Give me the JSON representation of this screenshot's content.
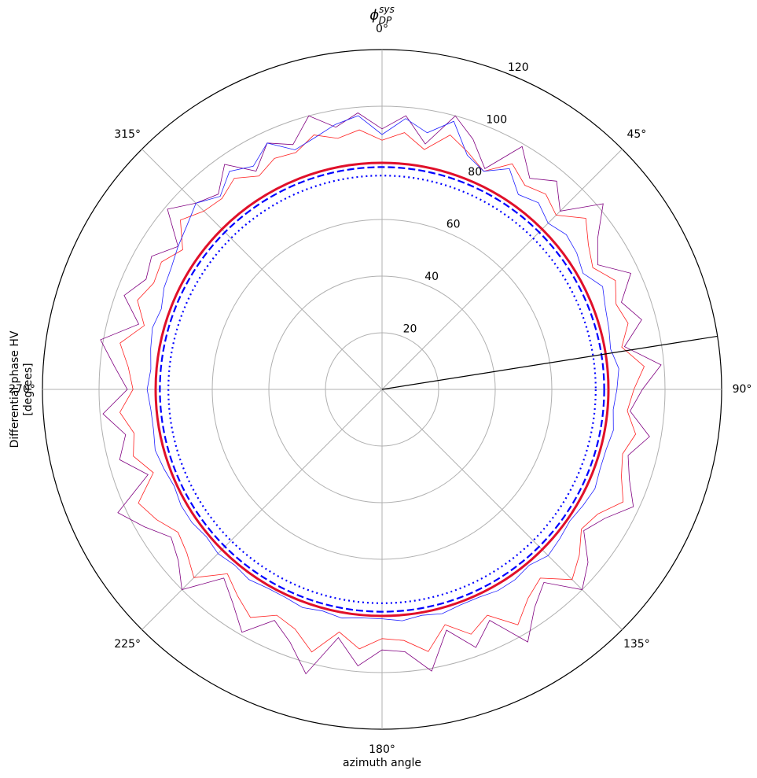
{
  "chart_data": {
    "type": "polar",
    "title": {
      "base": "ϕ",
      "sub": "DP",
      "sup": "sys"
    },
    "xlabel": "azimuth angle",
    "ylabel": [
      "Differential phase HV",
      "[degrees]"
    ],
    "theta_zero": "top",
    "theta_direction": "clockwise",
    "rlim": [
      0,
      120
    ],
    "rticks": [
      20,
      40,
      60,
      80,
      100,
      120
    ],
    "thetaticks": [
      {
        "value": 0,
        "label": "0°"
      },
      {
        "value": 45,
        "label": "45°"
      },
      {
        "value": 90,
        "label": "90°"
      },
      {
        "value": 135,
        "label": "135°"
      },
      {
        "value": 180,
        "label": "180°"
      },
      {
        "value": 225,
        "label": "225°"
      },
      {
        "value": 270,
        "label": "270°"
      },
      {
        "value": 315,
        "label": "315°"
      }
    ],
    "grid": true,
    "x": [
      0,
      5,
      10,
      15,
      20,
      25,
      30,
      35,
      40,
      45,
      50,
      55,
      60,
      65,
      70,
      75,
      80,
      85,
      90,
      95,
      100,
      105,
      110,
      115,
      120,
      125,
      130,
      135,
      140,
      145,
      150,
      155,
      160,
      165,
      170,
      175,
      180,
      185,
      190,
      195,
      200,
      205,
      210,
      215,
      220,
      225,
      230,
      235,
      240,
      245,
      250,
      255,
      260,
      265,
      270,
      275,
      280,
      285,
      290,
      295,
      300,
      305,
      310,
      315,
      320,
      325,
      330,
      335,
      340,
      345,
      350,
      355
    ],
    "series": [
      {
        "color": "#800080",
        "values": [
          92,
          97,
          88,
          100,
          94,
          86,
          99,
          91,
          96,
          89,
          102,
          93,
          88,
          97,
          90,
          95,
          87,
          99,
          92,
          88,
          96,
          90,
          93,
          98,
          91,
          87,
          95,
          100,
          89,
          94,
          103,
          90,
          97,
          88,
          101,
          93,
          92,
          98,
          89,
          104,
          95,
          90,
          99,
          92,
          87,
          100,
          94,
          91,
          97,
          103,
          88,
          96,
          92,
          99,
          90,
          95,
          101,
          89,
          97,
          92,
          94,
          88,
          99,
          93,
          90,
          97,
          89,
          96,
          92,
          100,
          94,
          98
        ]
      },
      {
        "color": "#ff2020",
        "values": [
          88,
          91,
          86,
          93,
          89,
          85,
          92,
          88,
          90,
          87,
          94,
          89,
          86,
          91,
          88,
          90,
          86,
          93,
          89,
          87,
          91,
          88,
          90,
          94,
          88,
          86,
          91,
          95,
          87,
          90,
          96,
          88,
          92,
          86,
          94,
          89,
          88,
          92,
          87,
          96,
          90,
          88,
          93,
          89,
          85,
          94,
          90,
          88,
          92,
          95,
          86,
          91,
          89,
          93,
          88,
          90,
          94,
          87,
          92,
          89,
          90,
          86,
          93,
          89,
          88,
          91,
          87,
          90,
          89,
          93,
          90,
          92
        ]
      },
      {
        "color": "#2020ff",
        "values": [
          90,
          96,
          92,
          98,
          88,
          85,
          90,
          84,
          86,
          83,
          85,
          84,
          82,
          86,
          84,
          83,
          82,
          84,
          83,
          82,
          83,
          82,
          82,
          83,
          82,
          81,
          82,
          83,
          81,
          82,
          82,
          81,
          81,
          82,
          81,
          82,
          81,
          81,
          82,
          81,
          82,
          81,
          81,
          82,
          81,
          82,
          81,
          82,
          82,
          81,
          82,
          83,
          82,
          82,
          83,
          82,
          83,
          84,
          83,
          85,
          86,
          88,
          90,
          93,
          89,
          94,
          91,
          96,
          90,
          92,
          95,
          97
        ]
      }
    ],
    "rings": [
      {
        "value": 80,
        "color": "#e0102a",
        "style": "solid"
      },
      {
        "value": 78.5,
        "color": "#0000ff",
        "style": "dashed"
      },
      {
        "value": 75.5,
        "color": "#0000ff",
        "style": "dotted"
      }
    ],
    "marker_theta": 81,
    "marker_color": "#000000"
  }
}
